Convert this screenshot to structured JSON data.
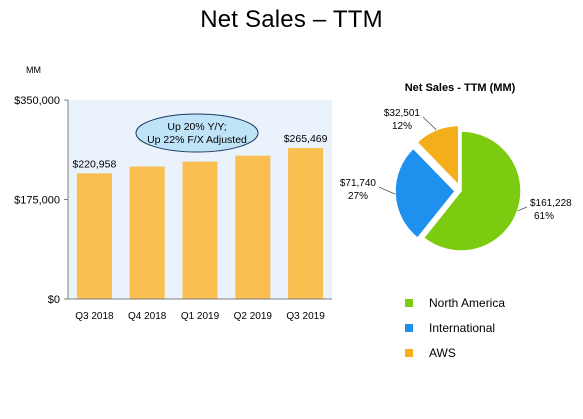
{
  "page": {
    "title": "Net Sales – TTM"
  },
  "chart_data": [
    {
      "type": "bar",
      "unit_label": "MM",
      "categories": [
        "Q3 2018",
        "Q4 2018",
        "Q1 2019",
        "Q2 2019",
        "Q3 2019"
      ],
      "values": [
        220958,
        232887,
        241546,
        252063,
        265469
      ],
      "data_labels": [
        "$220,958",
        "",
        "",
        "",
        "$265,469"
      ],
      "ylim": [
        0,
        350000
      ],
      "yticks": [
        0,
        175000,
        350000
      ],
      "ytick_labels": [
        "$0",
        "$175,000",
        "$350,000"
      ],
      "annotation": [
        "Up 20% Y/Y;",
        "Up 22% F/X Adjusted"
      ],
      "colors": {
        "bar": "#FBBE50",
        "plot_bg": "#EAF2FB",
        "callout_fill": "#BFE3F7",
        "callout_stroke": "#1F3864"
      },
      "grid": false
    },
    {
      "type": "pie",
      "title": "Net Sales - TTM (MM)",
      "slices": [
        {
          "name": "North America",
          "value": 161228,
          "value_label": "$161,228",
          "percent_label": "61%",
          "color": "#7DCB11"
        },
        {
          "name": "International",
          "value": 71740,
          "value_label": "$71,740",
          "percent_label": "27%",
          "color": "#1E90EE"
        },
        {
          "name": "AWS",
          "value": 32501,
          "value_label": "$32,501",
          "percent_label": "12%",
          "color": "#F5AE1B"
        }
      ],
      "legend_position": "bottom"
    }
  ]
}
